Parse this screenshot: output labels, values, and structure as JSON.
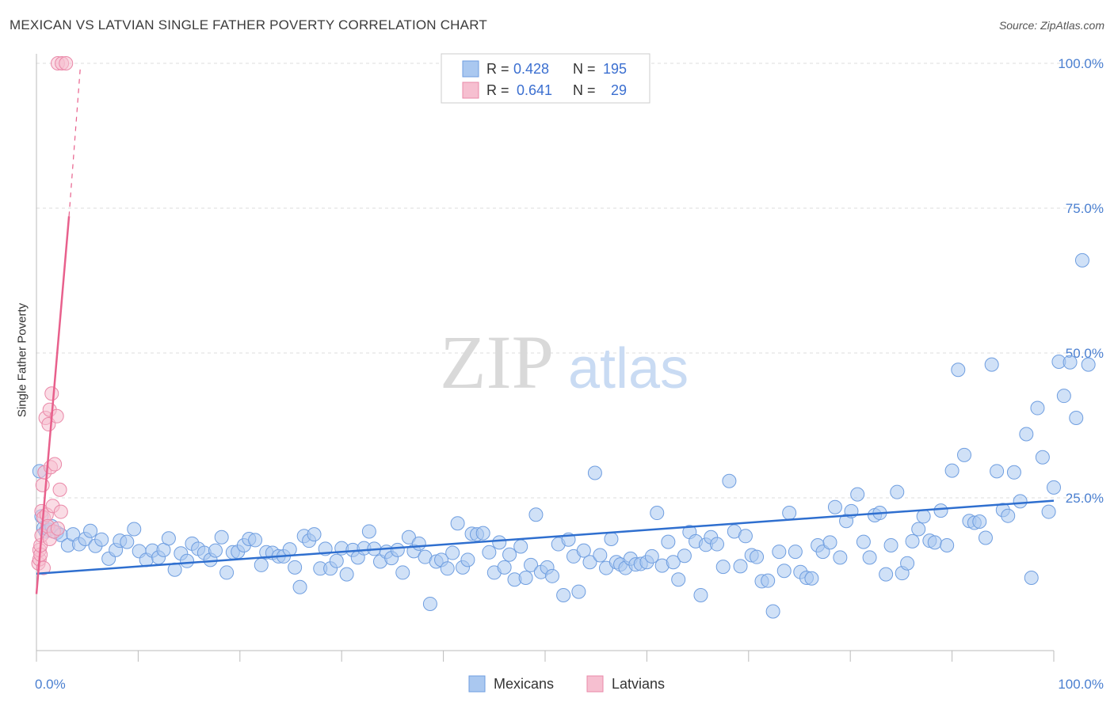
{
  "header": {
    "title": "MEXICAN VS LATVIAN SINGLE FATHER POVERTY CORRELATION CHART",
    "source": "Source: ZipAtlas.com"
  },
  "watermark": {
    "zip": "ZIP",
    "atlas": "atlas"
  },
  "colors": {
    "mexicans_fill": "#aac8f0",
    "mexicans_stroke": "#6f9ee0",
    "mexicans_line": "#2f6fcf",
    "latvians_fill": "#f6bfd0",
    "latvians_stroke": "#ea88a8",
    "latvians_line": "#e8608c",
    "grid": "#dddddd",
    "tick_label": "#4a7fd0"
  },
  "legend": {
    "rows": [
      {
        "r_label": "R =",
        "r_value": "0.428",
        "n_label": "N =",
        "n_value": "195"
      },
      {
        "r_label": "R =",
        "r_value": "0.641",
        "n_label": "N =",
        "n_value": "29"
      }
    ]
  },
  "bottom_legend": {
    "mexicans": "Mexicans",
    "latvians": "Latvians"
  },
  "chart_data": {
    "type": "scatter",
    "title": "MEXICAN VS LATVIAN SINGLE FATHER POVERTY CORRELATION CHART",
    "xlabel": "",
    "ylabel": "Single Father Poverty",
    "xlim": [
      0,
      100
    ],
    "ylim": [
      0,
      100
    ],
    "x_tick_labels": [
      "0.0%",
      "100.0%"
    ],
    "y_tick_labels": [
      "25.0%",
      "50.0%",
      "75.0%",
      "100.0%"
    ],
    "y_ticks": [
      25,
      50,
      75,
      100
    ],
    "grid": true,
    "legend_position": "top-center",
    "series": [
      {
        "name": "Mexicans",
        "r": 0.428,
        "n": 195,
        "trend": {
          "x": [
            0,
            100
          ],
          "y": [
            11.9,
            24.5
          ]
        },
        "points": [
          [
            0.3,
            29.6
          ],
          [
            0.5,
            21.8
          ],
          [
            0.7,
            19.8
          ],
          [
            0.9,
            19.2
          ],
          [
            1.2,
            19.5
          ],
          [
            1.5,
            20.1
          ],
          [
            2.0,
            19.0
          ],
          [
            2.4,
            18.6
          ],
          [
            3.1,
            16.8
          ],
          [
            3.6,
            18.7
          ],
          [
            4.2,
            17.0
          ],
          [
            4.8,
            17.9
          ],
          [
            5.3,
            19.3
          ],
          [
            5.8,
            16.7
          ],
          [
            6.4,
            17.8
          ],
          [
            7.1,
            14.5
          ],
          [
            7.8,
            16.0
          ],
          [
            8.2,
            17.6
          ],
          [
            8.9,
            17.4
          ],
          [
            9.6,
            19.6
          ],
          [
            10.1,
            15.8
          ],
          [
            10.8,
            14.3
          ],
          [
            11.4,
            15.9
          ],
          [
            12.0,
            14.7
          ],
          [
            12.5,
            16.0
          ],
          [
            13.0,
            18.0
          ],
          [
            13.6,
            12.6
          ],
          [
            14.2,
            15.4
          ],
          [
            14.8,
            14.1
          ],
          [
            15.3,
            17.1
          ],
          [
            15.9,
            16.2
          ],
          [
            16.5,
            15.5
          ],
          [
            17.1,
            14.3
          ],
          [
            17.6,
            15.9
          ],
          [
            18.2,
            18.2
          ],
          [
            18.7,
            12.1
          ],
          [
            19.3,
            15.6
          ],
          [
            19.8,
            15.7
          ],
          [
            20.4,
            16.8
          ],
          [
            20.9,
            17.9
          ],
          [
            21.5,
            17.7
          ],
          [
            22.1,
            13.4
          ],
          [
            22.6,
            15.6
          ],
          [
            23.2,
            15.5
          ],
          [
            23.8,
            14.9
          ],
          [
            24.3,
            14.9
          ],
          [
            24.9,
            16.1
          ],
          [
            25.4,
            13.0
          ],
          [
            25.9,
            9.6
          ],
          [
            26.3,
            18.4
          ],
          [
            26.8,
            17.6
          ],
          [
            27.3,
            18.7
          ],
          [
            27.9,
            12.8
          ],
          [
            28.4,
            16.2
          ],
          [
            28.9,
            12.8
          ],
          [
            29.5,
            14.1
          ],
          [
            30.0,
            16.3
          ],
          [
            30.5,
            11.8
          ],
          [
            31.1,
            16.0
          ],
          [
            31.6,
            14.7
          ],
          [
            32.2,
            16.3
          ],
          [
            32.7,
            19.2
          ],
          [
            33.2,
            16.2
          ],
          [
            33.8,
            14.0
          ],
          [
            34.4,
            15.7
          ],
          [
            34.9,
            14.6
          ],
          [
            35.5,
            16.0
          ],
          [
            36.0,
            12.1
          ],
          [
            36.6,
            18.2
          ],
          [
            37.1,
            15.8
          ],
          [
            37.6,
            17.1
          ],
          [
            38.2,
            14.8
          ],
          [
            38.7,
            6.7
          ],
          [
            39.3,
            14.0
          ],
          [
            39.8,
            14.3
          ],
          [
            40.4,
            12.8
          ],
          [
            40.9,
            15.5
          ],
          [
            41.4,
            20.6
          ],
          [
            41.9,
            13.0
          ],
          [
            42.4,
            14.3
          ],
          [
            42.8,
            18.8
          ],
          [
            43.3,
            18.7
          ],
          [
            43.9,
            18.9
          ],
          [
            44.5,
            15.6
          ],
          [
            45.0,
            12.1
          ],
          [
            45.5,
            17.3
          ],
          [
            46.0,
            13.0
          ],
          [
            46.5,
            15.2
          ],
          [
            47.0,
            10.9
          ],
          [
            47.6,
            16.6
          ],
          [
            48.1,
            11.2
          ],
          [
            48.6,
            13.4
          ],
          [
            49.1,
            22.1
          ],
          [
            49.6,
            12.2
          ],
          [
            50.2,
            13.0
          ],
          [
            50.7,
            11.5
          ],
          [
            51.3,
            17.0
          ],
          [
            51.8,
            8.2
          ],
          [
            52.3,
            17.8
          ],
          [
            52.8,
            14.9
          ],
          [
            53.3,
            8.8
          ],
          [
            53.8,
            15.9
          ],
          [
            54.4,
            13.9
          ],
          [
            54.9,
            29.3
          ],
          [
            55.4,
            15.1
          ],
          [
            56.0,
            12.9
          ],
          [
            56.5,
            17.9
          ],
          [
            57.0,
            13.9
          ],
          [
            57.4,
            13.5
          ],
          [
            57.9,
            12.9
          ],
          [
            58.4,
            14.5
          ],
          [
            58.9,
            13.5
          ],
          [
            59.4,
            13.6
          ],
          [
            60.0,
            13.9
          ],
          [
            60.5,
            14.9
          ],
          [
            61.0,
            22.4
          ],
          [
            61.5,
            13.3
          ],
          [
            62.1,
            17.4
          ],
          [
            62.6,
            13.9
          ],
          [
            63.1,
            10.9
          ],
          [
            63.7,
            15.0
          ],
          [
            64.2,
            19.1
          ],
          [
            64.8,
            17.5
          ],
          [
            65.3,
            8.2
          ],
          [
            65.8,
            16.9
          ],
          [
            66.3,
            18.2
          ],
          [
            66.9,
            17.0
          ],
          [
            67.5,
            13.1
          ],
          [
            68.1,
            27.9
          ],
          [
            68.6,
            19.2
          ],
          [
            69.2,
            13.2
          ],
          [
            69.7,
            18.4
          ],
          [
            70.3,
            15.1
          ],
          [
            70.8,
            14.8
          ],
          [
            71.3,
            10.6
          ],
          [
            71.9,
            10.7
          ],
          [
            72.4,
            5.4
          ],
          [
            73.0,
            15.7
          ],
          [
            73.5,
            12.4
          ],
          [
            74.0,
            22.4
          ],
          [
            74.6,
            15.7
          ],
          [
            75.1,
            12.2
          ],
          [
            75.7,
            11.2
          ],
          [
            76.2,
            11.1
          ],
          [
            76.8,
            16.8
          ],
          [
            77.3,
            15.7
          ],
          [
            78.0,
            17.3
          ],
          [
            78.5,
            23.4
          ],
          [
            79.0,
            14.7
          ],
          [
            79.6,
            21.0
          ],
          [
            80.1,
            22.7
          ],
          [
            80.7,
            25.6
          ],
          [
            81.3,
            17.4
          ],
          [
            81.9,
            14.7
          ],
          [
            82.4,
            22.0
          ],
          [
            82.9,
            22.4
          ],
          [
            83.5,
            11.8
          ],
          [
            84.0,
            16.8
          ],
          [
            84.6,
            26.0
          ],
          [
            85.1,
            12.0
          ],
          [
            85.6,
            13.7
          ],
          [
            86.1,
            17.5
          ],
          [
            86.7,
            19.6
          ],
          [
            87.2,
            21.8
          ],
          [
            87.8,
            17.6
          ],
          [
            88.3,
            17.3
          ],
          [
            88.9,
            22.8
          ],
          [
            89.5,
            16.8
          ],
          [
            90.0,
            29.7
          ],
          [
            90.6,
            47.1
          ],
          [
            91.2,
            32.4
          ],
          [
            91.7,
            21.0
          ],
          [
            92.2,
            20.7
          ],
          [
            92.7,
            20.9
          ],
          [
            93.3,
            18.1
          ],
          [
            93.9,
            48.0
          ],
          [
            94.4,
            29.6
          ],
          [
            95.0,
            22.9
          ],
          [
            95.5,
            21.9
          ],
          [
            96.1,
            29.4
          ],
          [
            96.7,
            24.4
          ],
          [
            97.3,
            36.0
          ],
          [
            97.8,
            11.2
          ],
          [
            98.4,
            40.5
          ],
          [
            98.9,
            32.0
          ],
          [
            99.5,
            22.6
          ],
          [
            100.0,
            26.8
          ],
          [
            100.5,
            48.5
          ],
          [
            101.0,
            42.6
          ],
          [
            101.6,
            48.4
          ],
          [
            102.2,
            38.8
          ],
          [
            102.8,
            66.0
          ],
          [
            103.4,
            48.0
          ]
        ]
      },
      {
        "name": "Latvians",
        "r": 0.641,
        "n": 29,
        "trend": {
          "x": [
            0,
            3.2
          ],
          "y": [
            8.4,
            73.6
          ]
        },
        "trend_dashed": {
          "x": [
            3.2,
            4.3
          ],
          "y": [
            73.6,
            99.0
          ]
        },
        "points": [
          [
            0.2,
            13.7
          ],
          [
            0.3,
            14.4
          ],
          [
            0.3,
            16.0
          ],
          [
            0.4,
            15.2
          ],
          [
            0.4,
            16.8
          ],
          [
            0.5,
            18.5
          ],
          [
            0.5,
            22.7
          ],
          [
            0.6,
            27.2
          ],
          [
            0.7,
            21.6
          ],
          [
            0.7,
            12.9
          ],
          [
            0.8,
            29.4
          ],
          [
            0.9,
            38.8
          ],
          [
            1.0,
            22.1
          ],
          [
            1.1,
            20.1
          ],
          [
            1.2,
            37.7
          ],
          [
            1.3,
            17.9
          ],
          [
            1.3,
            40.2
          ],
          [
            1.4,
            30.3
          ],
          [
            1.5,
            43.0
          ],
          [
            1.6,
            23.6
          ],
          [
            1.7,
            19.2
          ],
          [
            1.8,
            30.8
          ],
          [
            2.0,
            39.1
          ],
          [
            2.1,
            19.7
          ],
          [
            2.3,
            26.4
          ],
          [
            2.4,
            22.6
          ],
          [
            2.1,
            100.0
          ],
          [
            2.5,
            100.0
          ],
          [
            2.9,
            100.0
          ]
        ]
      }
    ]
  }
}
